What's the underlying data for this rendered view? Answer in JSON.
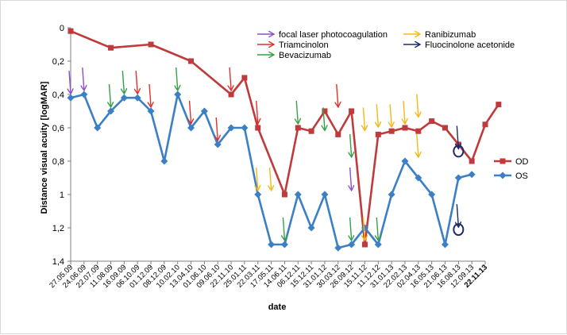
{
  "chart_data": {
    "type": "line",
    "title": "",
    "xlabel": "date",
    "ylabel": "Distance visual acuity [logMAR]",
    "ylim": [
      0,
      1.4
    ],
    "y_inverted": true,
    "y_ticks": [
      "0",
      "0,2",
      "0,4",
      "0,6",
      "0,8",
      "1",
      "1,2",
      "1,4"
    ],
    "grid": false,
    "legend_position": "right",
    "categories": [
      "27.05.09",
      "24.06.09",
      "22.07.09",
      "11.08.09",
      "16.09.09",
      "06.10.09",
      "01.12.09",
      "08.12.09",
      "10.02.10",
      "13.04.10",
      "01.06.10",
      "09.06.10",
      "22.11.10",
      "25.01.11",
      "22.03.11",
      "17.05.11",
      "14.06.11",
      "06.12.11",
      "15.12.11",
      "31.01.12",
      "30.03.12",
      "26.09.12",
      "15.11.12",
      "11.12.12",
      "31.01.13",
      "22.02.13",
      "02.04.13",
      "16.05.13",
      "21.06.13",
      "16.08.13",
      "12.09.13",
      "22.11.13"
    ],
    "bold_category": "22.11.13",
    "series": [
      {
        "name": "OD",
        "color": "#c0393b",
        "marker": "square",
        "points": [
          [
            0,
            0.02
          ],
          [
            3,
            0.12
          ],
          [
            6,
            0.1
          ],
          [
            9,
            0.2
          ],
          [
            12,
            0.4
          ],
          [
            13,
            0.3
          ],
          [
            14,
            0.6
          ],
          [
            16,
            1.0
          ],
          [
            17,
            0.6
          ],
          [
            18,
            0.62
          ],
          [
            19,
            0.5
          ],
          [
            20,
            0.64
          ],
          [
            21,
            0.5
          ],
          [
            22,
            1.3
          ],
          [
            23,
            0.64
          ],
          [
            24,
            0.62
          ],
          [
            25,
            0.6
          ],
          [
            26,
            0.62
          ],
          [
            27,
            0.56
          ],
          [
            28,
            0.6
          ],
          [
            29,
            0.7
          ],
          [
            30,
            0.8
          ],
          [
            31,
            0.58
          ],
          [
            32,
            0.46
          ]
        ]
      },
      {
        "name": "OS",
        "color": "#3b7fc4",
        "marker": "diamond",
        "points": [
          [
            0,
            0.42
          ],
          [
            1,
            0.4
          ],
          [
            2,
            0.6
          ],
          [
            3,
            0.5
          ],
          [
            4,
            0.42
          ],
          [
            5,
            0.42
          ],
          [
            6,
            0.5
          ],
          [
            7,
            0.8
          ],
          [
            8,
            0.4
          ],
          [
            9,
            0.6
          ],
          [
            10,
            0.5
          ],
          [
            11,
            0.7
          ],
          [
            12,
            0.6
          ],
          [
            13,
            0.6
          ],
          [
            14,
            1.0
          ],
          [
            15,
            1.3
          ],
          [
            16,
            1.3
          ],
          [
            17,
            1.0
          ],
          [
            18,
            1.2
          ],
          [
            19,
            1.0
          ],
          [
            20,
            1.32
          ],
          [
            21,
            1.3
          ],
          [
            22,
            1.2
          ],
          [
            23,
            1.3
          ],
          [
            24,
            1.0
          ],
          [
            25,
            0.8
          ],
          [
            26,
            0.9
          ],
          [
            27,
            1.0
          ],
          [
            28,
            1.3
          ],
          [
            29,
            0.9
          ],
          [
            30,
            0.88
          ]
        ]
      }
    ],
    "treatments": [
      {
        "name": "focal laser photocoagulation",
        "color": "#8e4fc7"
      },
      {
        "name": "Triamcinolon",
        "color": "#e0302a"
      },
      {
        "name": "Bevacizumab",
        "color": "#34a04a"
      },
      {
        "name": "Ranibizumab",
        "color": "#f5b816"
      },
      {
        "name": "Fluocinolone acetonide",
        "color": "#1f2a6b"
      }
    ],
    "annotations": [
      {
        "treatment": 0,
        "x": 0,
        "y": 0.42
      },
      {
        "treatment": 0,
        "x": 1,
        "y": 0.4
      },
      {
        "treatment": 2,
        "x": 3,
        "y": 0.5
      },
      {
        "treatment": 2,
        "x": 4,
        "y": 0.42
      },
      {
        "treatment": 1,
        "x": 5,
        "y": 0.42
      },
      {
        "treatment": 1,
        "x": 6,
        "y": 0.5
      },
      {
        "treatment": 2,
        "x": 8,
        "y": 0.4
      },
      {
        "treatment": 1,
        "x": 9,
        "y": 0.6
      },
      {
        "treatment": 1,
        "x": 11,
        "y": 0.7
      },
      {
        "treatment": 1,
        "x": 12,
        "y": 0.4
      },
      {
        "treatment": 1,
        "x": 14,
        "y": 0.6
      },
      {
        "treatment": 3,
        "x": 14,
        "y": 1.0
      },
      {
        "treatment": 3,
        "x": 15,
        "y": 1.0
      },
      {
        "treatment": 2,
        "x": 16,
        "y": 1.3
      },
      {
        "treatment": 2,
        "x": 17,
        "y": 0.6
      },
      {
        "treatment": 2,
        "x": 19,
        "y": 0.64
      },
      {
        "treatment": 1,
        "x": 20,
        "y": 0.5
      },
      {
        "treatment": 2,
        "x": 21,
        "y": 1.3
      },
      {
        "treatment": 2,
        "x": 21,
        "y": 0.8
      },
      {
        "treatment": 0,
        "x": 21,
        "y": 1.0
      },
      {
        "treatment": 3,
        "x": 22,
        "y": 1.3
      },
      {
        "treatment": 3,
        "x": 23,
        "y": 0.62
      },
      {
        "treatment": 3,
        "x": 22,
        "y": 0.64
      },
      {
        "treatment": 3,
        "x": 24,
        "y": 0.62
      },
      {
        "treatment": 2,
        "x": 23,
        "y": 1.3
      },
      {
        "treatment": 3,
        "x": 25,
        "y": 0.6
      },
      {
        "treatment": 3,
        "x": 26,
        "y": 0.56
      },
      {
        "treatment": 3,
        "x": 26,
        "y": 0.8
      },
      {
        "treatment": 4,
        "x": 29,
        "y": 0.75
      },
      {
        "treatment": 4,
        "x": 29,
        "y": 1.22
      }
    ],
    "circles": [
      {
        "x": 29,
        "y": 0.74
      },
      {
        "x": 29,
        "y": 1.21
      }
    ]
  }
}
